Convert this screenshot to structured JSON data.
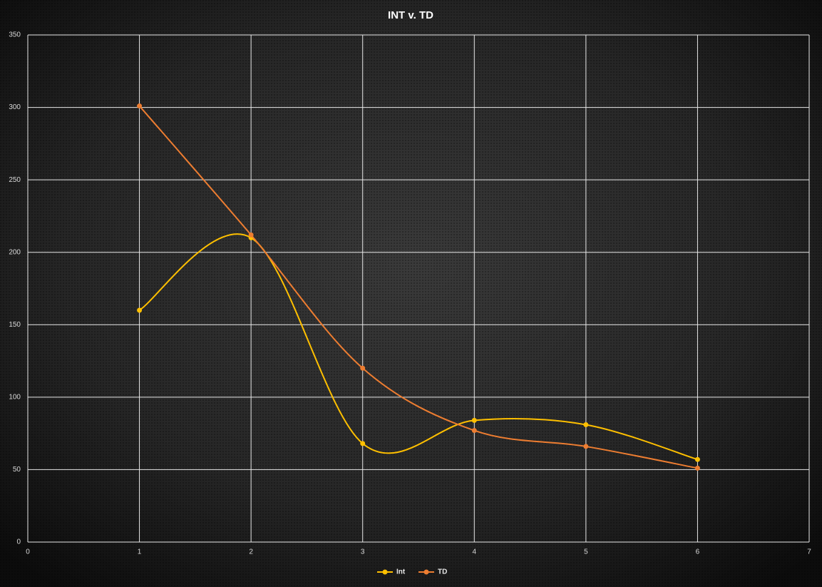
{
  "chart_data": {
    "type": "scatter",
    "title": "INT v. TD",
    "smooth": true,
    "grid": true,
    "legend": "bottom",
    "xlim": [
      0,
      7
    ],
    "xticks": [
      0,
      1,
      2,
      3,
      4,
      5,
      6,
      7
    ],
    "ylim": [
      0,
      350
    ],
    "yticks": [
      0,
      50,
      100,
      150,
      200,
      250,
      300,
      350
    ],
    "series": [
      {
        "name": "Int",
        "color": "#ffc000",
        "x": [
          1,
          2,
          3,
          4,
          5,
          6
        ],
        "values": [
          160,
          210,
          68,
          84,
          81,
          57
        ]
      },
      {
        "name": "TD",
        "color": "#ed7d31",
        "x": [
          1,
          2,
          3,
          4,
          5,
          6
        ],
        "values": [
          301,
          212,
          120,
          77,
          66,
          51
        ]
      }
    ]
  }
}
